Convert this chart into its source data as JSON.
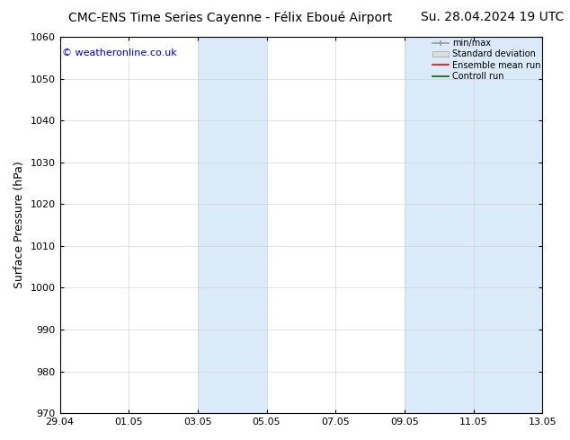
{
  "title_left": "CMC-ENS Time Series Cayenne - Félix Eboué Airport",
  "title_right": "Su. 28.04.2024 19 UTC",
  "ylabel": "Surface Pressure (hPa)",
  "watermark": "© weatheronline.co.uk",
  "watermark_color": "#0000cc",
  "xlim_start": 0,
  "xlim_end": 14,
  "ylim_bottom": 970,
  "ylim_top": 1060,
  "yticks": [
    970,
    980,
    990,
    1000,
    1010,
    1020,
    1030,
    1040,
    1050,
    1060
  ],
  "xtick_labels": [
    "29.04",
    "01.05",
    "03.05",
    "05.05",
    "07.05",
    "09.05",
    "11.05",
    "13.05"
  ],
  "xtick_positions": [
    0,
    2,
    4,
    6,
    8,
    10,
    12,
    14
  ],
  "shaded_bands": [
    {
      "xmin": 4.0,
      "xmax": 6.0,
      "color": "#daeaf8"
    },
    {
      "xmin": 10.0,
      "xmax": 14.0,
      "color": "#daeaf8"
    }
  ],
  "legend_labels": [
    "min/max",
    "Standard deviation",
    "Ensemble mean run",
    "Controll run"
  ],
  "legend_colors_handle": [
    "#aaaaaa",
    "#cccccc",
    "#ff0000",
    "#008000"
  ],
  "background_color": "#ffffff",
  "plot_bg_color": "#ffffff",
  "tick_fontsize": 8,
  "ylabel_fontsize": 9,
  "title_fontsize": 10,
  "legend_fontsize": 7
}
